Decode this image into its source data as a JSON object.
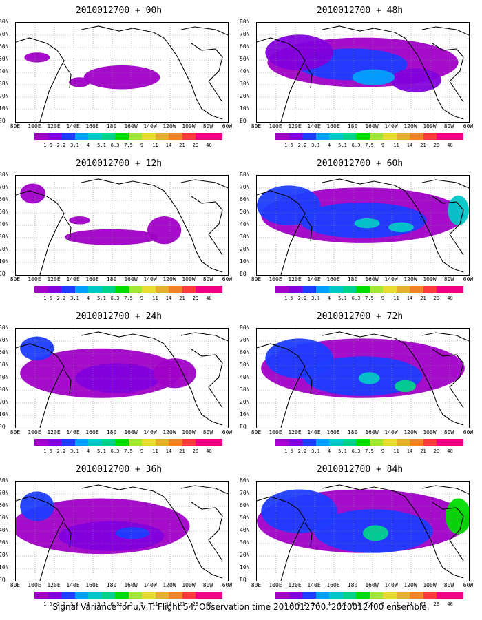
{
  "panels": [
    {
      "title": "2010012700 + 00h"
    },
    {
      "title": "2010012700 + 48h"
    },
    {
      "title": "2010012700 + 12h"
    },
    {
      "title": "2010012700 + 60h"
    },
    {
      "title": "2010012700 + 24h"
    },
    {
      "title": "2010012700 + 72h"
    },
    {
      "title": "2010012700 + 36h"
    },
    {
      "title": "2010012700 + 84h"
    }
  ],
  "footer": "Signal Variance for u,v,T. Flight 54. Observation time 2010012700. 2010012400 ensemble.",
  "chart_data": {
    "type": "heatmap",
    "x_tick_labels": [
      "80E",
      "100E",
      "120E",
      "140E",
      "160E",
      "180",
      "160W",
      "140W",
      "120W",
      "100W",
      "80W",
      "60W"
    ],
    "y_tick_labels": [
      "EQ",
      "10N",
      "20N",
      "30N",
      "40N",
      "50N",
      "60N",
      "70N",
      "80N"
    ],
    "colorbar_levels": [
      "1.6",
      "2.2",
      "3.1",
      "4",
      "5.1",
      "6.3",
      "7.5",
      "9",
      "11",
      "14",
      "21",
      "29",
      "40"
    ],
    "colorbar_colors": [
      "#a000c8",
      "#8200dc",
      "#1e3cff",
      "#00a0ff",
      "#00c8c8",
      "#00d28c",
      "#00dc00",
      "#a0e632",
      "#e6dc32",
      "#e6af2d",
      "#f08228",
      "#fa3c3c",
      "#f00082"
    ],
    "panels": [
      {
        "lead": "00h",
        "blobs": [
          [
            0.5,
            0.55,
            0.18,
            0.12,
            1
          ],
          [
            0.3,
            0.6,
            0.05,
            0.05,
            1
          ],
          [
            0.1,
            0.35,
            0.06,
            0.05,
            1
          ]
        ]
      },
      {
        "lead": "48h",
        "blobs": [
          [
            0.2,
            0.3,
            0.16,
            0.18,
            2
          ],
          [
            0.45,
            0.42,
            0.26,
            0.16,
            3
          ],
          [
            0.55,
            0.55,
            0.1,
            0.08,
            4
          ],
          [
            0.75,
            0.58,
            0.12,
            0.12,
            2
          ],
          [
            0.5,
            0.4,
            0.45,
            0.25,
            1
          ]
        ]
      },
      {
        "lead": "12h",
        "blobs": [
          [
            0.45,
            0.62,
            0.22,
            0.08,
            1
          ],
          [
            0.7,
            0.55,
            0.08,
            0.14,
            1
          ],
          [
            0.08,
            0.18,
            0.06,
            0.1,
            1
          ],
          [
            0.3,
            0.45,
            0.05,
            0.04,
            1
          ]
        ]
      },
      {
        "lead": "60h",
        "blobs": [
          [
            0.15,
            0.3,
            0.15,
            0.2,
            3
          ],
          [
            0.5,
            0.45,
            0.3,
            0.18,
            3
          ],
          [
            0.52,
            0.48,
            0.06,
            0.05,
            5
          ],
          [
            0.68,
            0.52,
            0.06,
            0.05,
            5
          ],
          [
            0.5,
            0.4,
            0.48,
            0.28,
            1
          ],
          [
            0.95,
            0.35,
            0.05,
            0.15,
            5
          ]
        ]
      },
      {
        "lead": "24h",
        "blobs": [
          [
            0.1,
            0.2,
            0.08,
            0.12,
            3
          ],
          [
            0.48,
            0.5,
            0.2,
            0.15,
            2
          ],
          [
            0.4,
            0.45,
            0.38,
            0.25,
            1
          ],
          [
            0.75,
            0.45,
            0.1,
            0.15,
            1
          ]
        ]
      },
      {
        "lead": "72h",
        "blobs": [
          [
            0.2,
            0.3,
            0.16,
            0.2,
            3
          ],
          [
            0.5,
            0.48,
            0.28,
            0.2,
            3
          ],
          [
            0.53,
            0.5,
            0.05,
            0.06,
            5
          ],
          [
            0.7,
            0.58,
            0.05,
            0.06,
            6
          ],
          [
            0.5,
            0.4,
            0.48,
            0.3,
            1
          ]
        ]
      },
      {
        "lead": "36h",
        "blobs": [
          [
            0.1,
            0.25,
            0.08,
            0.15,
            3
          ],
          [
            0.45,
            0.55,
            0.25,
            0.15,
            2
          ],
          [
            0.55,
            0.52,
            0.08,
            0.06,
            3
          ],
          [
            0.4,
            0.45,
            0.42,
            0.28,
            1
          ]
        ]
      },
      {
        "lead": "84h",
        "blobs": [
          [
            0.2,
            0.3,
            0.18,
            0.22,
            3
          ],
          [
            0.55,
            0.5,
            0.28,
            0.22,
            3
          ],
          [
            0.56,
            0.52,
            0.06,
            0.08,
            6
          ],
          [
            0.5,
            0.4,
            0.5,
            0.32,
            1
          ],
          [
            0.95,
            0.35,
            0.06,
            0.18,
            7
          ]
        ]
      }
    ]
  }
}
